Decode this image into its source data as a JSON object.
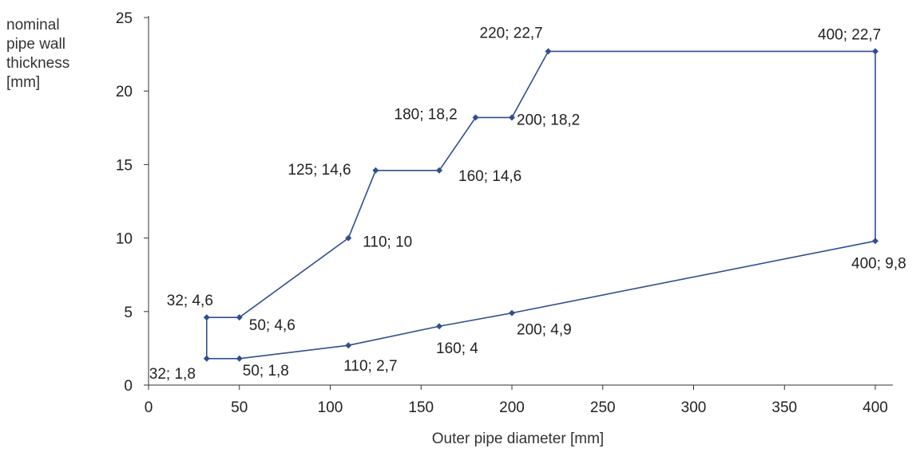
{
  "chart_data": {
    "type": "line",
    "ylabel_lines": [
      "nominal",
      "pipe wall",
      "thickness",
      "[mm]"
    ],
    "xlabel": "Outer pipe diameter [mm]",
    "xlim": [
      0,
      420
    ],
    "ylim": [
      0,
      25
    ],
    "xticks": [
      0,
      50,
      100,
      150,
      200,
      250,
      300,
      350,
      400
    ],
    "yticks": [
      0,
      5,
      10,
      15,
      20,
      25
    ],
    "grid": false,
    "line_color": "#2f4f8f",
    "points": [
      {
        "x": 32,
        "y": 1.8,
        "label": "32; 1,8"
      },
      {
        "x": 50,
        "y": 1.8,
        "label": "50; 1,8"
      },
      {
        "x": 110,
        "y": 2.7,
        "label": "110; 2,7"
      },
      {
        "x": 160,
        "y": 4,
        "label": "160; 4"
      },
      {
        "x": 200,
        "y": 4.9,
        "label": "200; 4,9"
      },
      {
        "x": 400,
        "y": 9.8,
        "label": "400; 9,8"
      },
      {
        "x": 400,
        "y": 22.7,
        "label": "400; 22,7"
      },
      {
        "x": 220,
        "y": 22.7,
        "label": "220; 22,7"
      },
      {
        "x": 200,
        "y": 18.2,
        "label": "200; 18,2"
      },
      {
        "x": 180,
        "y": 18.2,
        "label": "180; 18,2"
      },
      {
        "x": 160,
        "y": 14.6,
        "label": "160; 14,6"
      },
      {
        "x": 125,
        "y": 14.6,
        "label": "125; 14,6"
      },
      {
        "x": 110,
        "y": 10,
        "label": "110; 10"
      },
      {
        "x": 50,
        "y": 4.6,
        "label": "50; 4,6"
      },
      {
        "x": 32,
        "y": 4.6,
        "label": "32; 4,6"
      }
    ]
  }
}
